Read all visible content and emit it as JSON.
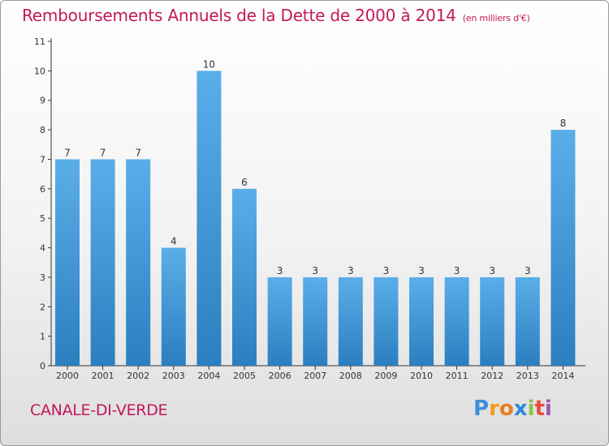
{
  "title": "Remboursements Annuels de la Dette de 2000 à 2014",
  "unit": "(en milliers d'€)",
  "commune": "CANALE-DI-VERDE",
  "logo_text": "Proxiti",
  "colors": {
    "title": "#c2185b",
    "bar_top": "#5aaee8",
    "bar_bottom": "#2b7fc0",
    "axis": "#333333"
  },
  "chart_data": {
    "type": "bar",
    "categories": [
      "2000",
      "2001",
      "2002",
      "2003",
      "2004",
      "2005",
      "2006",
      "2007",
      "2008",
      "2009",
      "2010",
      "2011",
      "2012",
      "2013",
      "2014"
    ],
    "values": [
      7,
      7,
      7,
      4,
      10,
      6,
      3,
      3,
      3,
      3,
      3,
      3,
      3,
      3,
      8
    ],
    "yticks": [
      "0",
      "1",
      "2",
      "3",
      "4",
      "5",
      "6",
      "7",
      "8",
      "9",
      "10",
      "11"
    ],
    "ylim": [
      0,
      11
    ],
    "grid": false,
    "data_labels": true
  }
}
